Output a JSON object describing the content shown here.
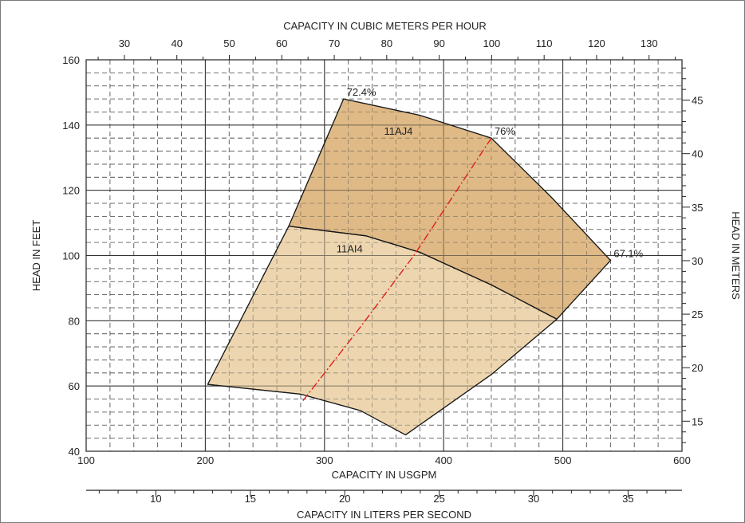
{
  "chart_data": {
    "type": "area",
    "title": "",
    "xlabel": "CAPACITY IN USGPM",
    "ylabel": "HEAD IN FEET",
    "x2label": "CAPACITY IN CUBIC METERS PER HOUR",
    "y2label": "HEAD IN METERS",
    "x3label": "CAPACITY IN LITERS PER SECOND",
    "xlim": [
      100,
      600
    ],
    "ylim": [
      40,
      160
    ],
    "x_ticks": [
      100,
      200,
      300,
      400,
      500,
      600
    ],
    "y_ticks": [
      40,
      60,
      80,
      100,
      120,
      140,
      160
    ],
    "m3h_ticks": [
      30,
      40,
      50,
      60,
      70,
      80,
      90,
      100,
      110,
      120,
      130
    ],
    "meters_ticks": [
      15,
      20,
      25,
      30,
      35,
      40,
      45
    ],
    "lps_ticks": [
      10,
      15,
      20,
      25,
      30,
      35
    ],
    "grid": true,
    "regions": [
      {
        "name": "11AJ4",
        "color": "#dcb47d",
        "points": [
          [
            316,
            148
          ],
          [
            380,
            143
          ],
          [
            440,
            136
          ],
          [
            490,
            118
          ],
          [
            540,
            98.5
          ],
          [
            495,
            80.5
          ],
          [
            440,
            91
          ],
          [
            380,
            101
          ],
          [
            335,
            106
          ],
          [
            270,
            109
          ]
        ]
      },
      {
        "name": "11AI4",
        "color": "#ecd2a8",
        "points": [
          [
            270,
            109
          ],
          [
            335,
            106
          ],
          [
            380,
            101
          ],
          [
            440,
            91
          ],
          [
            495,
            80.5
          ],
          [
            440,
            63.5
          ],
          [
            368,
            45
          ],
          [
            330,
            52.5
          ],
          [
            280,
            57.5
          ],
          [
            202,
            60.5
          ]
        ]
      }
    ],
    "efficiency_line": {
      "color": "#e0201a",
      "points": [
        [
          282,
          55.5
        ],
        [
          330,
          78
        ],
        [
          375,
          100
        ],
        [
          440,
          136
        ]
      ]
    },
    "annotations": [
      {
        "text": "72.4%",
        "x": 316,
        "y": 148
      },
      {
        "text": "76%",
        "x": 440,
        "y": 136
      },
      {
        "text": "67.1%",
        "x": 540,
        "y": 98.5
      }
    ],
    "series_labels": [
      {
        "text": "11AJ4",
        "x": 350,
        "y": 137
      },
      {
        "text": "11AI4",
        "x": 310,
        "y": 101
      }
    ]
  }
}
